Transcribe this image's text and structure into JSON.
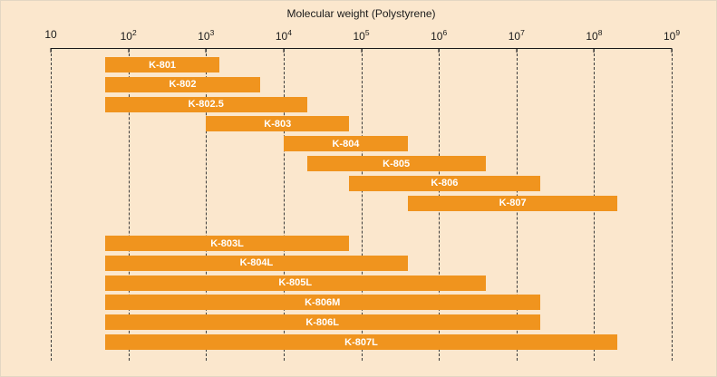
{
  "title": "Molecular weight (Polystyrene)",
  "colors": {
    "background": "#fbe7cd",
    "bar": "#f0941e",
    "bar_label": "#ffffff",
    "axis": "#1a1a1a",
    "gridline": "#3c3c3c"
  },
  "chart_data": {
    "type": "bar",
    "orientation": "horizontal",
    "scale": "log10",
    "title": "Molecular weight (Polystyrene)",
    "xlabel": "Molecular weight (Polystyrene)",
    "ylabel": "",
    "xlim": [
      10,
      1000000000
    ],
    "grid": "vertical-dashed",
    "legend": "none",
    "x_ticks": [
      {
        "base": "10",
        "exp": ""
      },
      {
        "base": "10",
        "exp": "2"
      },
      {
        "base": "10",
        "exp": "3"
      },
      {
        "base": "10",
        "exp": "4"
      },
      {
        "base": "10",
        "exp": "5"
      },
      {
        "base": "10",
        "exp": "6"
      },
      {
        "base": "10",
        "exp": "7"
      },
      {
        "base": "10",
        "exp": "8"
      },
      {
        "base": "10",
        "exp": "9"
      }
    ],
    "bars": [
      {
        "label": "K-801",
        "group": "upper",
        "min": 50,
        "max": 1500
      },
      {
        "label": "K-802",
        "group": "upper",
        "min": 50,
        "max": 5000
      },
      {
        "label": "K-802.5",
        "group": "upper",
        "min": 50,
        "max": 20000
      },
      {
        "label": "K-803",
        "group": "upper",
        "min": 1000,
        "max": 70000
      },
      {
        "label": "K-804",
        "group": "upper",
        "min": 10000,
        "max": 400000
      },
      {
        "label": "K-805",
        "group": "upper",
        "min": 20000,
        "max": 4000000
      },
      {
        "label": "K-806",
        "group": "upper",
        "min": 70000,
        "max": 20000000
      },
      {
        "label": "K-807",
        "group": "upper",
        "min": 400000,
        "max": 200000000
      },
      {
        "label": "K-803L",
        "group": "lower",
        "min": 50,
        "max": 70000
      },
      {
        "label": "K-804L",
        "group": "lower",
        "min": 50,
        "max": 400000
      },
      {
        "label": "K-805L",
        "group": "lower",
        "min": 50,
        "max": 4000000
      },
      {
        "label": "K-806M",
        "group": "lower",
        "min": 50,
        "max": 20000000
      },
      {
        "label": "K-806L",
        "group": "lower",
        "min": 50,
        "max": 20000000
      },
      {
        "label": "K-807L",
        "group": "lower",
        "min": 50,
        "max": 200000000
      }
    ]
  }
}
